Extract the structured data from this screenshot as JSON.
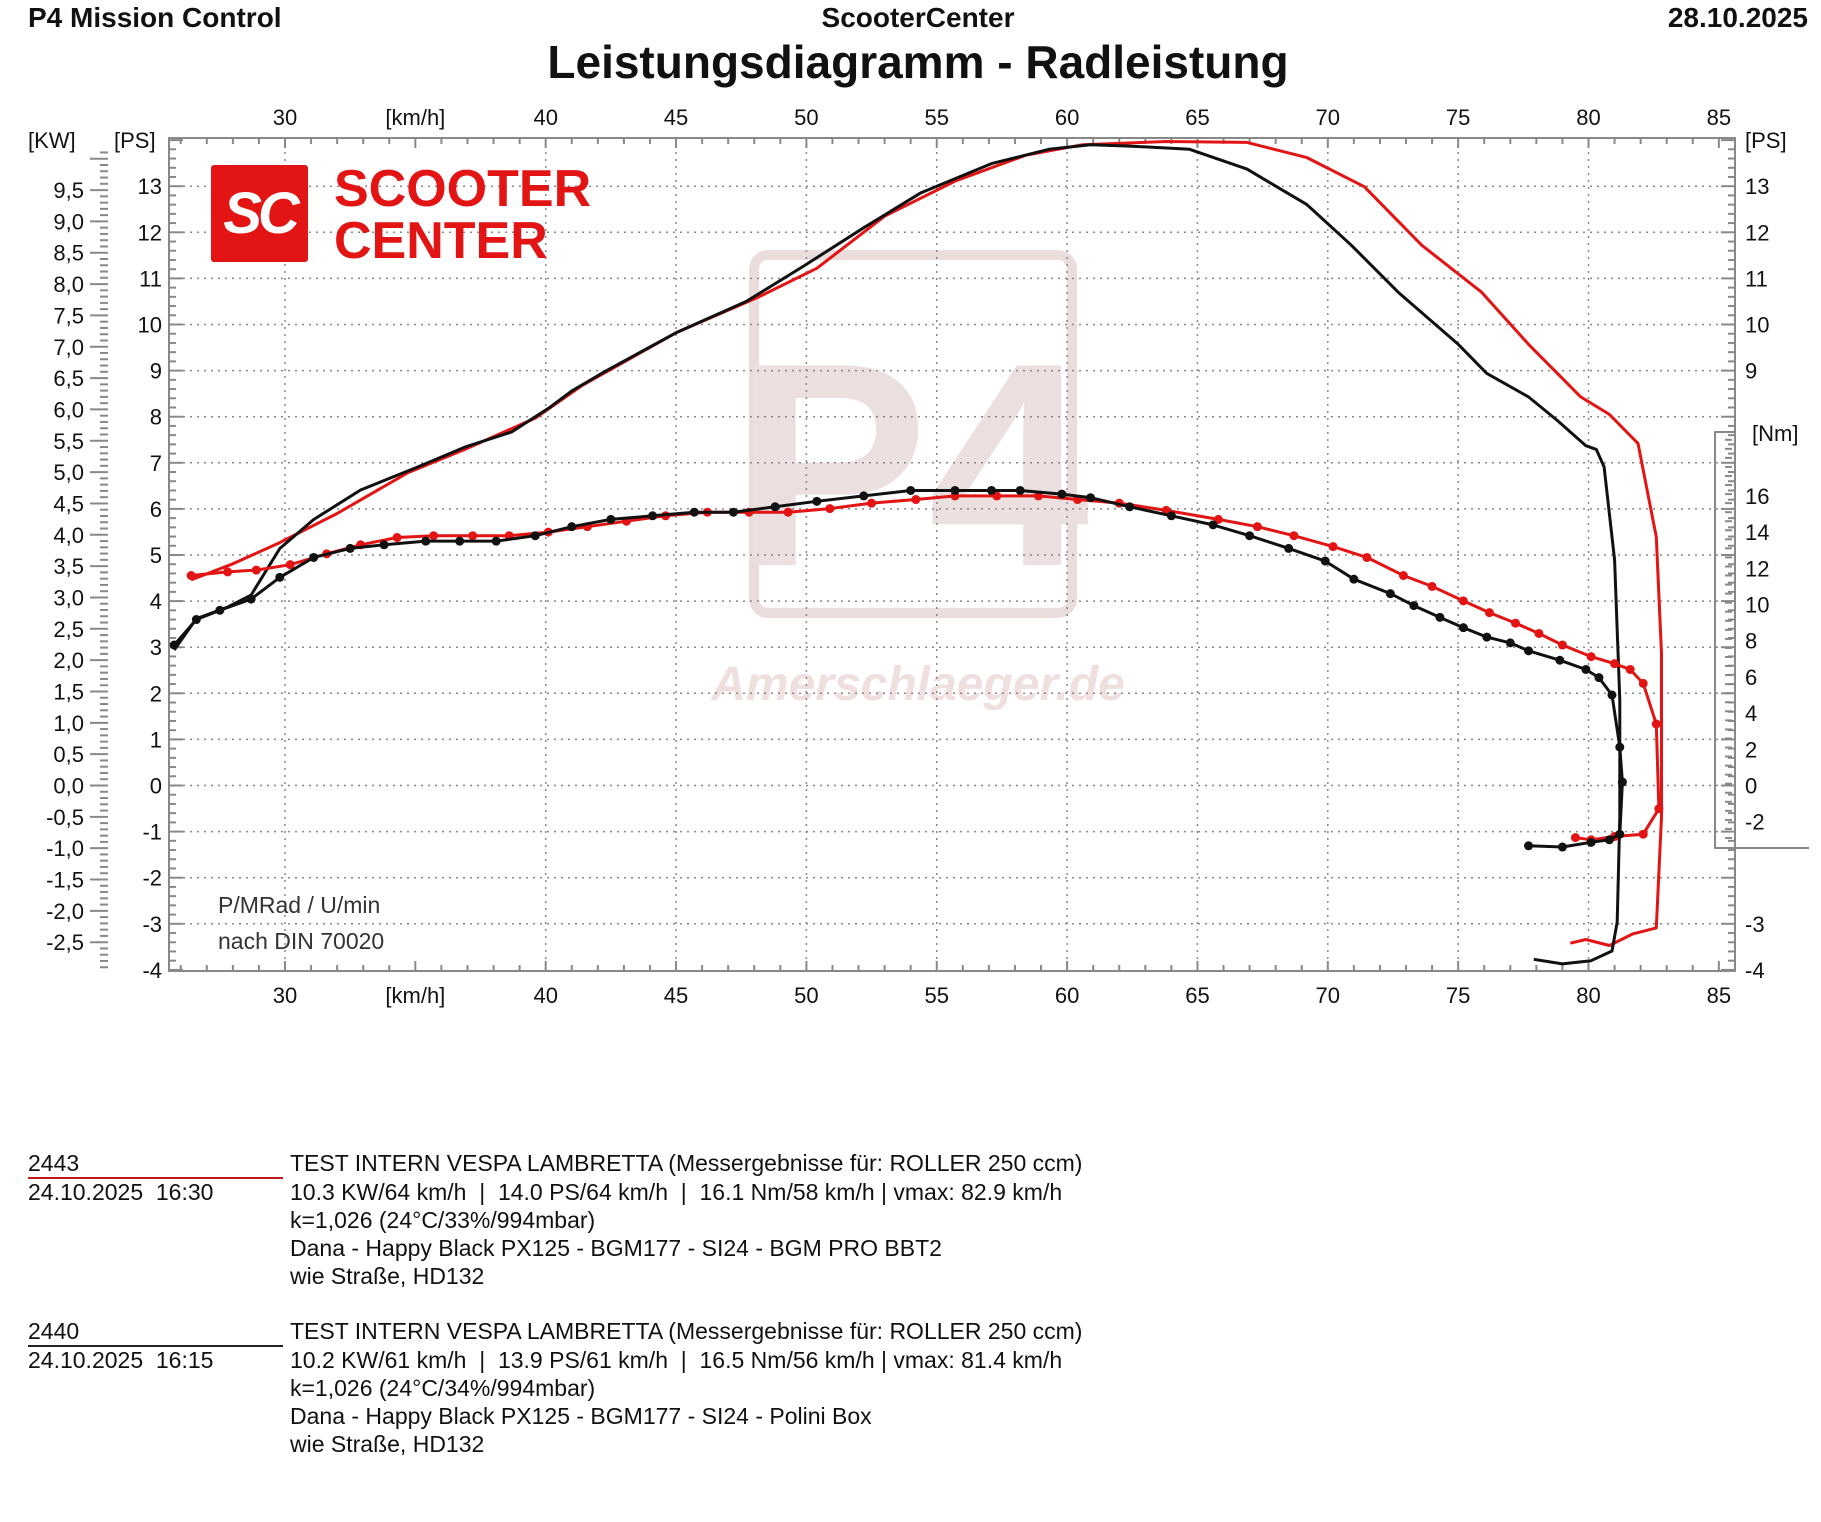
{
  "header": {
    "app": "P4 Mission Control",
    "center": "ScooterCenter",
    "date": "28.10.2025"
  },
  "title": "Leistungsdiagramm - Radleistung",
  "logo": {
    "mark": "SC",
    "line1": "SCOOTER",
    "line2": "CENTER",
    "color": "#e31414"
  },
  "watermark": {
    "mark": "P4",
    "text": "Amerschlaeger.de"
  },
  "annotation": {
    "line1": "P/MRad / U/min",
    "line2": "nach DIN 70020"
  },
  "runs": [
    {
      "id": "2443",
      "datetime": "24.10.2025  16:30",
      "color": "#e31414",
      "lines": [
        "TEST INTERN VESPA LAMBRETTA (Messergebnisse für: ROLLER 250 ccm)",
        "10.3 KW/64 km/h  |  14.0 PS/64 km/h  |  16.1 Nm/58 km/h | vmax: 82.9 km/h",
        "k=1,026 (24°C/33%/994mbar)",
        "Dana - Happy Black PX125 - BGM177 - SI24 - BGM PRO BBT2",
        "wie Straße, HD132"
      ]
    },
    {
      "id": "2440",
      "datetime": "24.10.2025  16:15",
      "color": "#111111",
      "lines": [
        "TEST INTERN VESPA LAMBRETTA (Messergebnisse für: ROLLER 250 ccm)",
        "10.2 KW/61 km/h  |  13.9 PS/61 km/h  |  16.5 Nm/56 km/h | vmax: 81.4 km/h",
        "k=1,026 (24°C/34%/994mbar)",
        "Dana - Happy Black PX125 - BGM177 - SI24 - Polini Box",
        "wie Straße, HD132"
      ]
    }
  ],
  "chart_data": {
    "type": "line",
    "title": "Leistungsdiagramm - Radleistung",
    "xlabel": "[km/h]",
    "xlim": [
      25.5,
      85.6
    ],
    "x_ticks": [
      30,
      40,
      45,
      50,
      55,
      60,
      65,
      70,
      75,
      80,
      85
    ],
    "ylabel_left_kw": "[KW]",
    "ylabel_left_ps": "[PS]",
    "ylabel_right_ps": "[PS]",
    "ylabel_right_nm": "[Nm]",
    "ylim_ps": [
      -4,
      14
    ],
    "ps_ticks_left": [
      13,
      12,
      11,
      10,
      9,
      8,
      7,
      6,
      5,
      4,
      3,
      2,
      1,
      0,
      -1,
      -2,
      -3,
      -4
    ],
    "ps_ticks_right": [
      13,
      12,
      11,
      10,
      9,
      -3,
      -4
    ],
    "kw_ticks": [
      "9,5",
      "9,0",
      "8,5",
      "8,0",
      "7,5",
      "7,0",
      "6,5",
      "6,0",
      "5,5",
      "5,0",
      "4,5",
      "4,0",
      "3,5",
      "3,0",
      "2,5",
      "2,0",
      "1,5",
      "1,0",
      "0,5",
      "0,0",
      "-0,5",
      "-1,0",
      "-1,5",
      "-2,0",
      "-2,5"
    ],
    "nm_ticks": [
      16,
      14,
      12,
      10,
      8,
      6,
      4,
      2,
      0,
      -2
    ],
    "grid": true,
    "series": [
      {
        "name": "2443",
        "quantity": "power_ps",
        "color": "#e31414",
        "points": [
          [
            26.4,
            4.46
          ],
          [
            28.0,
            4.81
          ],
          [
            29.8,
            5.27
          ],
          [
            32.0,
            5.9
          ],
          [
            34.7,
            6.78
          ],
          [
            36.9,
            7.29
          ],
          [
            39.6,
            7.97
          ],
          [
            41.4,
            8.68
          ],
          [
            45.0,
            9.82
          ],
          [
            48.1,
            10.58
          ],
          [
            50.4,
            11.22
          ],
          [
            53.0,
            12.35
          ],
          [
            55.7,
            13.11
          ],
          [
            58.4,
            13.67
          ],
          [
            60.6,
            13.9
          ],
          [
            63.8,
            13.97
          ],
          [
            66.9,
            13.95
          ],
          [
            69.2,
            13.62
          ],
          [
            71.4,
            12.99
          ],
          [
            73.6,
            11.72
          ],
          [
            75.9,
            10.7
          ],
          [
            77.7,
            9.57
          ],
          [
            79.7,
            8.43
          ],
          [
            80.8,
            8.05
          ],
          [
            81.9,
            7.42
          ],
          [
            82.6,
            5.39
          ],
          [
            82.8,
            2.86
          ],
          [
            82.8,
            -0.68
          ],
          [
            82.6,
            -3.09
          ],
          [
            81.7,
            -3.22
          ],
          [
            80.8,
            -3.47
          ],
          [
            79.9,
            -3.34
          ],
          [
            79.3,
            -3.42
          ]
        ]
      },
      {
        "name": "2440",
        "quantity": "power_ps",
        "color": "#111111",
        "points": [
          [
            25.75,
            2.94
          ],
          [
            26.6,
            3.62
          ],
          [
            27.8,
            3.87
          ],
          [
            28.7,
            4.13
          ],
          [
            29.8,
            5.14
          ],
          [
            31.1,
            5.77
          ],
          [
            32.9,
            6.41
          ],
          [
            35.1,
            6.91
          ],
          [
            36.9,
            7.34
          ],
          [
            38.7,
            7.67
          ],
          [
            40.1,
            8.18
          ],
          [
            41.0,
            8.56
          ],
          [
            42.3,
            8.99
          ],
          [
            45.0,
            9.82
          ],
          [
            47.7,
            10.5
          ],
          [
            49.9,
            11.27
          ],
          [
            52.2,
            12.1
          ],
          [
            54.4,
            12.86
          ],
          [
            57.1,
            13.49
          ],
          [
            59.3,
            13.8
          ],
          [
            60.9,
            13.9
          ],
          [
            62.4,
            13.87
          ],
          [
            64.7,
            13.8
          ],
          [
            66.9,
            13.37
          ],
          [
            69.2,
            12.6
          ],
          [
            70.9,
            11.72
          ],
          [
            72.7,
            10.7
          ],
          [
            75.0,
            9.57
          ],
          [
            76.1,
            8.94
          ],
          [
            77.7,
            8.43
          ],
          [
            78.8,
            7.92
          ],
          [
            79.9,
            7.37
          ],
          [
            80.3,
            7.29
          ],
          [
            80.6,
            6.91
          ],
          [
            81.0,
            4.89
          ],
          [
            81.2,
            1.85
          ],
          [
            81.2,
            -0.68
          ],
          [
            81.1,
            -2.96
          ],
          [
            80.9,
            -3.59
          ],
          [
            80.1,
            -3.8
          ],
          [
            79.0,
            -3.87
          ],
          [
            77.9,
            -3.77
          ]
        ]
      },
      {
        "name": "2443",
        "quantity": "torque_nm",
        "color": "#e31414",
        "markers": true,
        "points": [
          [
            26.4,
            11.6
          ],
          [
            27.8,
            11.8
          ],
          [
            28.9,
            11.9
          ],
          [
            30.2,
            12.2
          ],
          [
            31.6,
            12.8
          ],
          [
            32.9,
            13.3
          ],
          [
            34.3,
            13.7
          ],
          [
            35.7,
            13.8
          ],
          [
            37.2,
            13.8
          ],
          [
            38.6,
            13.8
          ],
          [
            40.1,
            14.0
          ],
          [
            41.6,
            14.3
          ],
          [
            43.1,
            14.6
          ],
          [
            44.6,
            14.9
          ],
          [
            46.2,
            15.1
          ],
          [
            47.8,
            15.1
          ],
          [
            49.3,
            15.1
          ],
          [
            50.9,
            15.3
          ],
          [
            52.5,
            15.6
          ],
          [
            54.2,
            15.8
          ],
          [
            55.7,
            16.0
          ],
          [
            57.3,
            16.0
          ],
          [
            58.9,
            16.0
          ],
          [
            60.4,
            15.8
          ],
          [
            62.0,
            15.6
          ],
          [
            63.8,
            15.2
          ],
          [
            65.8,
            14.7
          ],
          [
            67.3,
            14.3
          ],
          [
            68.7,
            13.8
          ],
          [
            70.2,
            13.2
          ],
          [
            71.5,
            12.6
          ],
          [
            72.9,
            11.6
          ],
          [
            74.0,
            11.0
          ],
          [
            75.2,
            10.2
          ],
          [
            76.2,
            9.55
          ],
          [
            77.2,
            8.97
          ],
          [
            78.1,
            8.4
          ],
          [
            79.0,
            7.76
          ],
          [
            80.1,
            7.12
          ],
          [
            81.0,
            6.73
          ],
          [
            81.6,
            6.41
          ],
          [
            82.1,
            5.64
          ],
          [
            82.6,
            3.4
          ],
          [
            82.7,
            -1.28
          ],
          [
            82.1,
            -2.69
          ],
          [
            81.0,
            -2.82
          ],
          [
            80.1,
            -3.0
          ],
          [
            79.5,
            -2.88
          ]
        ]
      },
      {
        "name": "2440",
        "quantity": "torque_nm",
        "color": "#111111",
        "markers": true,
        "points": [
          [
            25.75,
            7.76
          ],
          [
            26.6,
            9.17
          ],
          [
            27.5,
            9.68
          ],
          [
            28.7,
            10.3
          ],
          [
            29.8,
            11.5
          ],
          [
            31.1,
            12.6
          ],
          [
            32.5,
            13.1
          ],
          [
            33.8,
            13.3
          ],
          [
            35.4,
            13.5
          ],
          [
            36.7,
            13.5
          ],
          [
            38.1,
            13.5
          ],
          [
            39.6,
            13.8
          ],
          [
            41.0,
            14.3
          ],
          [
            42.5,
            14.7
          ],
          [
            44.1,
            14.9
          ],
          [
            45.7,
            15.1
          ],
          [
            47.2,
            15.1
          ],
          [
            48.8,
            15.4
          ],
          [
            50.4,
            15.7
          ],
          [
            52.2,
            16.0
          ],
          [
            54.0,
            16.3
          ],
          [
            55.7,
            16.3
          ],
          [
            57.1,
            16.3
          ],
          [
            58.2,
            16.3
          ],
          [
            59.8,
            16.1
          ],
          [
            60.9,
            15.9
          ],
          [
            62.4,
            15.4
          ],
          [
            64.0,
            14.9
          ],
          [
            65.6,
            14.4
          ],
          [
            67.0,
            13.8
          ],
          [
            68.5,
            13.1
          ],
          [
            69.9,
            12.4
          ],
          [
            71.0,
            11.4
          ],
          [
            72.4,
            10.6
          ],
          [
            73.3,
            9.94
          ],
          [
            74.3,
            9.29
          ],
          [
            75.2,
            8.72
          ],
          [
            76.1,
            8.2
          ],
          [
            77.0,
            7.88
          ],
          [
            77.7,
            7.44
          ],
          [
            78.9,
            6.92
          ],
          [
            79.9,
            6.41
          ],
          [
            80.4,
            5.96
          ],
          [
            80.9,
            5.0
          ],
          [
            81.2,
            2.12
          ],
          [
            81.3,
            0.19
          ],
          [
            81.2,
            -2.69
          ],
          [
            80.8,
            -3.0
          ],
          [
            80.1,
            -3.14
          ],
          [
            79.0,
            -3.4
          ],
          [
            77.7,
            -3.33
          ]
        ]
      }
    ]
  }
}
